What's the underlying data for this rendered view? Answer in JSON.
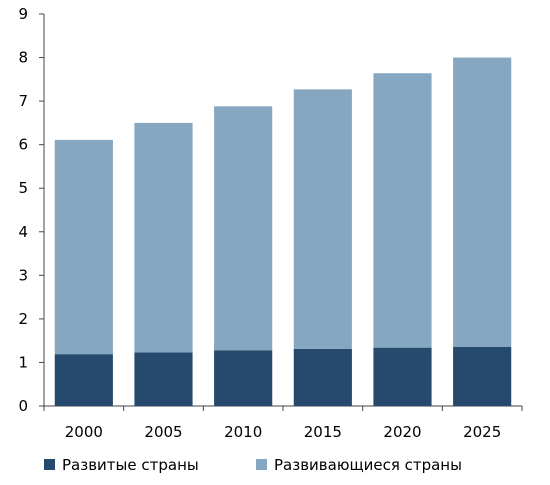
{
  "chart_data": {
    "type": "bar",
    "stacked": true,
    "categories": [
      "2000",
      "2005",
      "2010",
      "2015",
      "2020",
      "2025"
    ],
    "series": [
      {
        "name": "Развитые страны",
        "color": "#254a6d",
        "values": [
          1.19,
          1.23,
          1.28,
          1.31,
          1.34,
          1.36
        ]
      },
      {
        "name": "Развивающиеся страны",
        "color": "#86a7c1",
        "values": [
          4.92,
          5.27,
          5.6,
          5.96,
          6.3,
          6.64
        ]
      }
    ],
    "totals": [
      6.11,
      6.5,
      6.88,
      7.27,
      7.64,
      8.0
    ],
    "y_ticks": [
      "0",
      "1",
      "2",
      "3",
      "4",
      "5",
      "6",
      "7",
      "8",
      "9"
    ],
    "ylim": [
      0,
      9
    ],
    "grid": false,
    "legend_position": "bottom",
    "title": "",
    "xlabel": "",
    "ylabel": ""
  }
}
